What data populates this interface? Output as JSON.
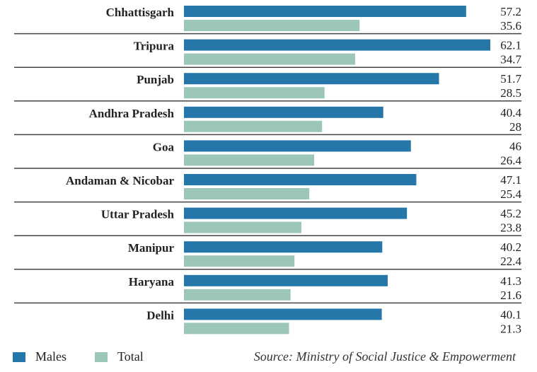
{
  "chart_data": {
    "type": "bar",
    "orientation": "horizontal",
    "categories": [
      "Chhattisgarh",
      "Tripura",
      "Punjab",
      "Andhra Pradesh",
      "Goa",
      "Andaman & Nicobar",
      "Uttar Pradesh",
      "Manipur",
      "Haryana",
      "Delhi"
    ],
    "series": [
      {
        "name": "Males",
        "color": "#2477a8",
        "values": [
          57.2,
          62.1,
          51.7,
          40.4,
          46,
          47.1,
          45.2,
          40.2,
          41.3,
          40.1
        ]
      },
      {
        "name": "Total",
        "color": "#9dc6bb",
        "values": [
          35.6,
          34.7,
          28.5,
          28,
          26.4,
          25.4,
          23.8,
          22.4,
          21.6,
          21.3
        ]
      }
    ],
    "value_labels": [
      [
        "57.2",
        "35.6"
      ],
      [
        "62.1",
        "34.7"
      ],
      [
        "51.7",
        "28.5"
      ],
      [
        "40.4",
        "28"
      ],
      [
        "46",
        "26.4"
      ],
      [
        "47.1",
        "25.4"
      ],
      [
        "45.2",
        "23.8"
      ],
      [
        "40.2",
        "22.4"
      ],
      [
        "41.3",
        "21.6"
      ],
      [
        "40.1",
        "21.3"
      ]
    ],
    "legend_placement": "bottom-left",
    "grid": false,
    "source": "Source: Ministry of Social Justice & Empowerment"
  }
}
